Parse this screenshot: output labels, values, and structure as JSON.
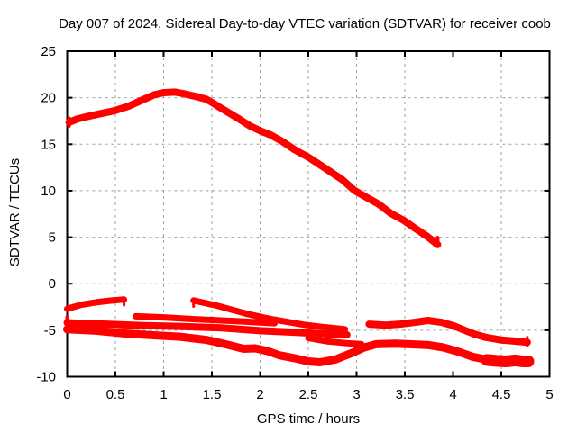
{
  "title": "Day 007 of 2024, Sidereal Day-to-day VTEC variation (SDTVAR) for receiver coob",
  "colors": {
    "data": "#ff0000",
    "grid": "#a0a0a0",
    "axis": "#000000",
    "background": "#ffffff"
  },
  "chart_data": {
    "type": "scatter",
    "title": "Day 007 of 2024, Sidereal Day-to-day VTEC variation (SDTVAR) for receiver coob",
    "xlabel": "GPS time / hours",
    "ylabel": "SDTVAR / TECUs",
    "xlim": [
      0,
      5
    ],
    "ylim": [
      -10,
      25
    ],
    "xticks": [
      0,
      0.5,
      1,
      1.5,
      2,
      2.5,
      3,
      3.5,
      4,
      4.5,
      5
    ],
    "yticks": [
      -10,
      -5,
      0,
      5,
      10,
      15,
      20,
      25
    ],
    "grid": true,
    "legend_position": "none",
    "point_color": "#ff0000",
    "series": [
      {
        "name": "vtec-arc-1",
        "width": 8,
        "points": [
          [
            0.02,
            17.35
          ],
          [
            0.1,
            17.7
          ],
          [
            0.2,
            17.95
          ],
          [
            0.33,
            18.25
          ],
          [
            0.49,
            18.6
          ],
          [
            0.64,
            19.1
          ],
          [
            0.8,
            19.85
          ],
          [
            0.9,
            20.3
          ],
          [
            1.0,
            20.55
          ],
          [
            1.12,
            20.6
          ],
          [
            1.2,
            20.45
          ],
          [
            1.33,
            20.15
          ],
          [
            1.44,
            19.85
          ],
          [
            1.5,
            19.5
          ],
          [
            1.56,
            19.1
          ],
          [
            1.64,
            18.6
          ],
          [
            1.77,
            17.8
          ],
          [
            1.89,
            17.0
          ],
          [
            2.0,
            16.45
          ],
          [
            2.11,
            16.0
          ],
          [
            2.23,
            15.3
          ],
          [
            2.36,
            14.4
          ],
          [
            2.5,
            13.6
          ],
          [
            2.67,
            12.45
          ],
          [
            2.85,
            11.2
          ],
          [
            2.98,
            10.0
          ],
          [
            3.11,
            9.25
          ],
          [
            3.23,
            8.55
          ],
          [
            3.35,
            7.6
          ],
          [
            3.49,
            6.8
          ],
          [
            3.6,
            6.0
          ],
          [
            3.73,
            5.1
          ],
          [
            3.84,
            4.2
          ]
        ]
      },
      {
        "name": "vtec-arc-1-start-tick",
        "width": 4,
        "points": [
          [
            0.02,
            17.8
          ],
          [
            0.02,
            16.95
          ]
        ]
      },
      {
        "name": "vtec-arc-1-end-tick",
        "width": 4,
        "points": [
          [
            3.84,
            4.95
          ],
          [
            3.84,
            4.05
          ]
        ]
      },
      {
        "name": "vtec-arc-2",
        "width": 7,
        "points": [
          [
            0.0,
            -2.7
          ],
          [
            0.15,
            -2.25
          ],
          [
            0.3,
            -2.0
          ],
          [
            0.45,
            -1.82
          ],
          [
            0.59,
            -1.7
          ]
        ]
      },
      {
        "name": "vtec-arc-2-end-tick",
        "width": 3,
        "points": [
          [
            0.59,
            -1.5
          ],
          [
            0.59,
            -2.3
          ]
        ]
      },
      {
        "name": "vtec-arc-3",
        "width": 7,
        "points": [
          [
            1.31,
            -1.8
          ],
          [
            1.42,
            -2.05
          ],
          [
            1.55,
            -2.35
          ],
          [
            1.69,
            -2.75
          ],
          [
            1.85,
            -3.2
          ],
          [
            2.0,
            -3.55
          ],
          [
            2.14,
            -3.85
          ],
          [
            2.28,
            -4.1
          ],
          [
            2.45,
            -4.4
          ],
          [
            2.6,
            -4.6
          ],
          [
            2.75,
            -4.75
          ],
          [
            2.88,
            -4.9
          ]
        ]
      },
      {
        "name": "vtec-arc-3-start-tick",
        "width": 3,
        "points": [
          [
            1.31,
            -1.75
          ],
          [
            1.31,
            -2.45
          ]
        ]
      },
      {
        "name": "vtec-arc-4",
        "width": 8,
        "points": [
          [
            0.0,
            -4.2
          ],
          [
            0.4,
            -4.35
          ],
          [
            0.8,
            -4.5
          ],
          [
            1.2,
            -4.6
          ],
          [
            1.6,
            -4.75
          ],
          [
            2.0,
            -5.05
          ],
          [
            2.3,
            -5.2
          ],
          [
            2.6,
            -5.35
          ],
          [
            2.9,
            -5.5
          ]
        ]
      },
      {
        "name": "vtec-arc-5",
        "width": 7,
        "points": [
          [
            0.71,
            -3.5
          ],
          [
            1.0,
            -3.62
          ],
          [
            1.3,
            -3.8
          ],
          [
            1.6,
            -3.95
          ],
          [
            1.9,
            -4.1
          ],
          [
            2.15,
            -4.25
          ]
        ]
      },
      {
        "name": "vtec-arc-6",
        "width": 9,
        "points": [
          [
            0.0,
            -4.9
          ],
          [
            0.3,
            -5.05
          ],
          [
            0.6,
            -5.35
          ],
          [
            0.9,
            -5.55
          ],
          [
            1.17,
            -5.7
          ],
          [
            1.45,
            -6.05
          ],
          [
            1.64,
            -6.5
          ],
          [
            1.83,
            -7.0
          ],
          [
            1.95,
            -6.95
          ],
          [
            2.08,
            -7.25
          ],
          [
            2.2,
            -7.7
          ],
          [
            2.35,
            -8.0
          ],
          [
            2.5,
            -8.35
          ],
          [
            2.62,
            -8.45
          ],
          [
            2.78,
            -8.15
          ],
          [
            2.95,
            -7.45
          ],
          [
            3.08,
            -6.85
          ],
          [
            3.2,
            -6.5
          ],
          [
            3.4,
            -6.45
          ],
          [
            3.55,
            -6.5
          ],
          [
            3.75,
            -6.6
          ],
          [
            3.9,
            -6.85
          ],
          [
            4.05,
            -7.3
          ],
          [
            4.2,
            -7.85
          ],
          [
            4.32,
            -8.1
          ]
        ]
      },
      {
        "name": "vtec-arc-6-end-cluster",
        "width": 13,
        "points": [
          [
            4.35,
            -8.2
          ],
          [
            4.45,
            -8.3
          ],
          [
            4.55,
            -8.35
          ],
          [
            4.65,
            -8.25
          ],
          [
            4.72,
            -8.35
          ],
          [
            4.78,
            -8.35
          ]
        ]
      },
      {
        "name": "vtec-arc-7",
        "width": 7,
        "points": [
          [
            2.5,
            -5.85
          ],
          [
            2.7,
            -6.2
          ],
          [
            2.9,
            -6.4
          ],
          [
            3.05,
            -6.5
          ]
        ]
      },
      {
        "name": "vtec-arc-8",
        "width": 8,
        "points": [
          [
            3.13,
            -4.35
          ],
          [
            3.3,
            -4.45
          ],
          [
            3.45,
            -4.35
          ],
          [
            3.6,
            -4.15
          ],
          [
            3.74,
            -3.95
          ],
          [
            3.88,
            -4.15
          ],
          [
            4.0,
            -4.5
          ],
          [
            4.12,
            -5.0
          ],
          [
            4.23,
            -5.45
          ],
          [
            4.35,
            -5.8
          ],
          [
            4.5,
            -6.05
          ],
          [
            4.62,
            -6.15
          ],
          [
            4.77,
            -6.3
          ]
        ]
      },
      {
        "name": "vtec-arc-8-end-tick",
        "width": 3,
        "points": [
          [
            4.77,
            -5.75
          ],
          [
            4.77,
            -6.7
          ]
        ]
      },
      {
        "name": "axis-start-ticks",
        "width": 4,
        "points": [
          [
            0.0,
            -3.55
          ],
          [
            0.0,
            -4.9
          ]
        ]
      }
    ]
  }
}
